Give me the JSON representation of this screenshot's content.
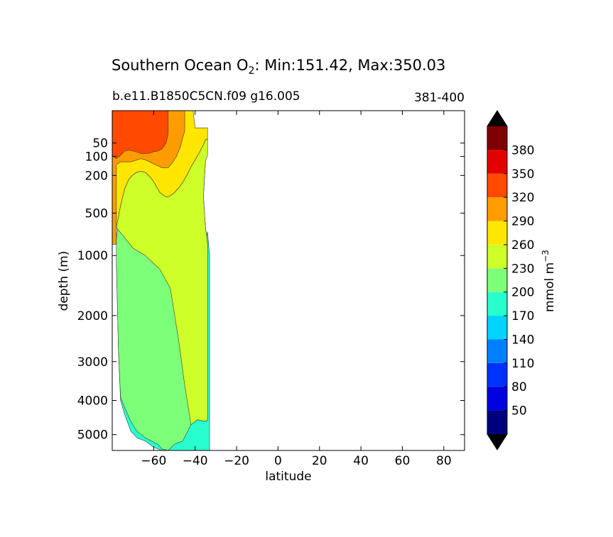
{
  "chart_data": {
    "type": "contour",
    "title": {
      "prefix": "Southern Ocean O",
      "subscript": "2",
      "suffix": ": Min:151.42, Max:350.03"
    },
    "subtitle_left": "b.e11.B1850C5CN.f09 g16.005",
    "subtitle_right": "381-400",
    "xlabel": "latitude",
    "ylabel": "depth (m)",
    "xlim": [
      -80,
      90
    ],
    "x_ticks": [
      -60,
      -40,
      -20,
      0,
      20,
      40,
      60,
      80
    ],
    "x_tick_labels": [
      "−60",
      "−40",
      "−20",
      "0",
      "20",
      "40",
      "60",
      "80"
    ],
    "y_scale": "sqrt",
    "ylim": [
      5500,
      0
    ],
    "y_ticks": [
      50,
      100,
      200,
      500,
      1000,
      2000,
      3000,
      4000,
      5000
    ],
    "y_tick_labels": [
      "50",
      "100",
      "200",
      "500",
      "1000",
      "2000",
      "3000",
      "4000",
      "5000"
    ],
    "colorbar": {
      "label": "mmol m",
      "label_superscript": "−3",
      "levels": [
        50,
        80,
        110,
        140,
        170,
        200,
        230,
        260,
        290,
        320,
        350,
        380
      ],
      "level_labels": [
        "50",
        "80",
        "110",
        "140",
        "170",
        "200",
        "230",
        "260",
        "290",
        "320",
        "350",
        "380"
      ],
      "colors": [
        "#00007f",
        "#0000e0",
        "#0032ff",
        "#0080ff",
        "#00d4ff",
        "#29ffce",
        "#7dff7a",
        "#ceff29",
        "#ffe600",
        "#ff9c00",
        "#ff4a00",
        "#e30000",
        "#7f0000"
      ],
      "under_color": "#000000",
      "over_color": "#000000",
      "extend": "both"
    },
    "regions": [
      {
        "name": "170-200",
        "color": "#29ffce",
        "points": [
          [
            -78,
            1050
          ],
          [
            -77,
            2750
          ],
          [
            -76,
            4000
          ],
          [
            -74,
            4400
          ],
          [
            -71,
            4900
          ],
          [
            -68,
            5100
          ],
          [
            -64,
            5200
          ],
          [
            -60,
            5400
          ],
          [
            -56,
            5500
          ],
          [
            -48,
            5500
          ],
          [
            -40,
            5500
          ],
          [
            -35,
            5500
          ],
          [
            -33,
            5500
          ],
          [
            -33,
            1000
          ],
          [
            -34,
            700
          ],
          [
            -36,
            900
          ],
          [
            -38,
            1800
          ],
          [
            -40,
            3000
          ],
          [
            -45,
            3700
          ],
          [
            -50,
            3400
          ],
          [
            -60,
            2800
          ],
          [
            -70,
            1500
          ],
          [
            -78,
            1050
          ]
        ]
      },
      {
        "name": "200-230",
        "color": "#7dff7a",
        "points": [
          [
            -78,
            780
          ],
          [
            -78,
            1100
          ],
          [
            -77,
            2750
          ],
          [
            -76,
            3900
          ],
          [
            -74,
            4200
          ],
          [
            -71,
            4600
          ],
          [
            -68,
            4900
          ],
          [
            -64,
            5100
          ],
          [
            -61,
            5200
          ],
          [
            -58,
            5300
          ],
          [
            -56,
            5450
          ],
          [
            -53,
            5500
          ],
          [
            -50,
            5300
          ],
          [
            -46,
            5200
          ],
          [
            -42,
            4700
          ],
          [
            -39,
            4550
          ],
          [
            -35,
            4600
          ],
          [
            -34,
            4550
          ],
          [
            -34,
            850
          ],
          [
            -35,
            650
          ],
          [
            -36,
            350
          ],
          [
            -35,
            120
          ],
          [
            -38,
            230
          ],
          [
            -41,
            370
          ],
          [
            -45,
            470
          ],
          [
            -48,
            560
          ],
          [
            -50,
            640
          ],
          [
            -53,
            610
          ],
          [
            -55,
            570
          ],
          [
            -57,
            500
          ],
          [
            -60,
            440
          ],
          [
            -62,
            330
          ],
          [
            -64,
            240
          ],
          [
            -66,
            205
          ],
          [
            -68,
            195
          ],
          [
            -70,
            200
          ],
          [
            -72,
            240
          ],
          [
            -74,
            310
          ],
          [
            -76,
            460
          ],
          [
            -78,
            780
          ]
        ]
      },
      {
        "name": "230-260",
        "color": "#ceff29",
        "points": [
          [
            -78,
            650
          ],
          [
            -76,
            430
          ],
          [
            -74,
            290
          ],
          [
            -72,
            225
          ],
          [
            -70,
            195
          ],
          [
            -68,
            180
          ],
          [
            -66,
            175
          ],
          [
            -64,
            182
          ],
          [
            -62,
            205
          ],
          [
            -60,
            240
          ],
          [
            -57,
            320
          ],
          [
            -54,
            355
          ],
          [
            -52,
            345
          ],
          [
            -50,
            320
          ],
          [
            -48,
            285
          ],
          [
            -46,
            245
          ],
          [
            -44,
            200
          ],
          [
            -42,
            150
          ],
          [
            -40,
            115
          ],
          [
            -38,
            85
          ],
          [
            -36,
            55
          ],
          [
            -35,
            40
          ],
          [
            -34,
            38
          ],
          [
            -34,
            95
          ],
          [
            -35,
            120
          ],
          [
            -36,
            350
          ],
          [
            -35,
            650
          ],
          [
            -34,
            850
          ],
          [
            -34,
            4550
          ],
          [
            -35,
            4600
          ],
          [
            -39,
            4550
          ],
          [
            -42,
            4700
          ],
          [
            -45,
            3600
          ],
          [
            -48,
            2500
          ],
          [
            -52,
            1500
          ],
          [
            -57,
            1200
          ],
          [
            -64,
            1000
          ],
          [
            -70,
            900
          ],
          [
            -78,
            650
          ]
        ]
      },
      {
        "name": "260-290",
        "color": "#ffe600",
        "points": [
          [
            -80,
            0
          ],
          [
            -80,
            850
          ],
          [
            -78,
            850
          ],
          [
            -78,
            650
          ],
          [
            -76,
            430
          ],
          [
            -74,
            290
          ],
          [
            -72,
            225
          ],
          [
            -70,
            195
          ],
          [
            -68,
            180
          ],
          [
            -66,
            175
          ],
          [
            -64,
            182
          ],
          [
            -62,
            205
          ],
          [
            -60,
            240
          ],
          [
            -57,
            320
          ],
          [
            -54,
            355
          ],
          [
            -52,
            345
          ],
          [
            -50,
            320
          ],
          [
            -48,
            285
          ],
          [
            -46,
            245
          ],
          [
            -44,
            200
          ],
          [
            -42,
            150
          ],
          [
            -40,
            115
          ],
          [
            -38,
            85
          ],
          [
            -36,
            55
          ],
          [
            -35,
            40
          ],
          [
            -34,
            38
          ],
          [
            -34,
            14
          ],
          [
            -40,
            14
          ],
          [
            -41,
            0
          ],
          [
            -80,
            0
          ]
        ]
      },
      {
        "name": "290-320",
        "color": "#ff9c00",
        "points": [
          [
            -80,
            0
          ],
          [
            -80,
            850
          ],
          [
            -78,
            850
          ],
          [
            -78,
            790
          ],
          [
            -78,
            760
          ],
          [
            -78,
            140
          ],
          [
            -76,
            125
          ],
          [
            -73,
            125
          ],
          [
            -71,
            125
          ],
          [
            -68,
            115
          ],
          [
            -66,
            110
          ],
          [
            -64,
            115
          ],
          [
            -60,
            135
          ],
          [
            -56,
            155
          ],
          [
            -53,
            155
          ],
          [
            -51,
            130
          ],
          [
            -49,
            100
          ],
          [
            -47,
            60
          ],
          [
            -46,
            35
          ],
          [
            -45,
            20
          ],
          [
            -45,
            0
          ],
          [
            -80,
            0
          ]
        ]
      },
      {
        "name": "320-350",
        "color": "#ff4a00",
        "points": [
          [
            -80,
            0
          ],
          [
            -80,
            95
          ],
          [
            -78,
            110
          ],
          [
            -76,
            95
          ],
          [
            -74,
            78
          ],
          [
            -72,
            74
          ],
          [
            -70,
            78
          ],
          [
            -68,
            82
          ],
          [
            -66,
            88
          ],
          [
            -64,
            88
          ],
          [
            -62,
            86
          ],
          [
            -60,
            80
          ],
          [
            -58,
            78
          ],
          [
            -56,
            70
          ],
          [
            -54,
            50
          ],
          [
            -53,
            25
          ],
          [
            -53,
            0
          ],
          [
            -80,
            0
          ]
        ]
      },
      {
        "name": "350-380",
        "color": "#e30000",
        "points": []
      }
    ]
  }
}
